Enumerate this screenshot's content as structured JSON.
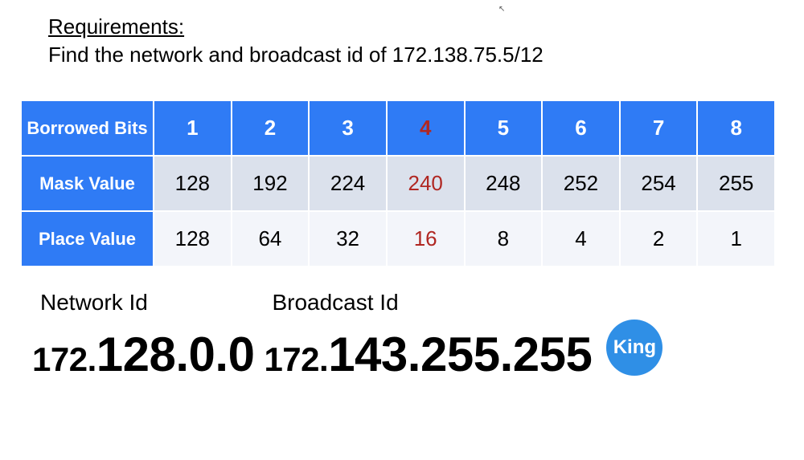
{
  "heading": {
    "title": "Requirements:",
    "body": "Find the network and broadcast id of 172.138.75.5/12"
  },
  "table": {
    "row_labels": [
      "Borrowed Bits",
      "Mask Value",
      "Place Value"
    ],
    "highlight_col_index": 3,
    "rows": {
      "borrowed": [
        "1",
        "2",
        "3",
        "4",
        "5",
        "6",
        "7",
        "8"
      ],
      "mask": [
        "128",
        "192",
        "224",
        "240",
        "248",
        "252",
        "254",
        "255"
      ],
      "place": [
        "128",
        "64",
        "32",
        "16",
        "8",
        "4",
        "2",
        "1"
      ]
    },
    "colors": {
      "header_bg": "#2f7bf5",
      "header_fg": "#ffffff",
      "mask_row_bg": "#dbe1ec",
      "place_row_bg": "#f3f5fa",
      "highlight_fg": "#b02722",
      "border": "#ffffff"
    },
    "font": {
      "header_size_pt": 20,
      "cell_size_pt": 20,
      "rowhead_size_pt": 17
    }
  },
  "answers": {
    "network": {
      "label": "Network Id",
      "prefix": "172.",
      "value": "128.0.0"
    },
    "broadcast": {
      "label": "Broadcast Id",
      "prefix": "172.",
      "value": "143.255.255"
    },
    "font": {
      "label_size_pt": 21,
      "prefix_size_pt": 32,
      "value_size_pt": 45
    }
  },
  "logo": {
    "text": "King",
    "bg": "#2f8fe6",
    "fg": "#ffffff"
  }
}
